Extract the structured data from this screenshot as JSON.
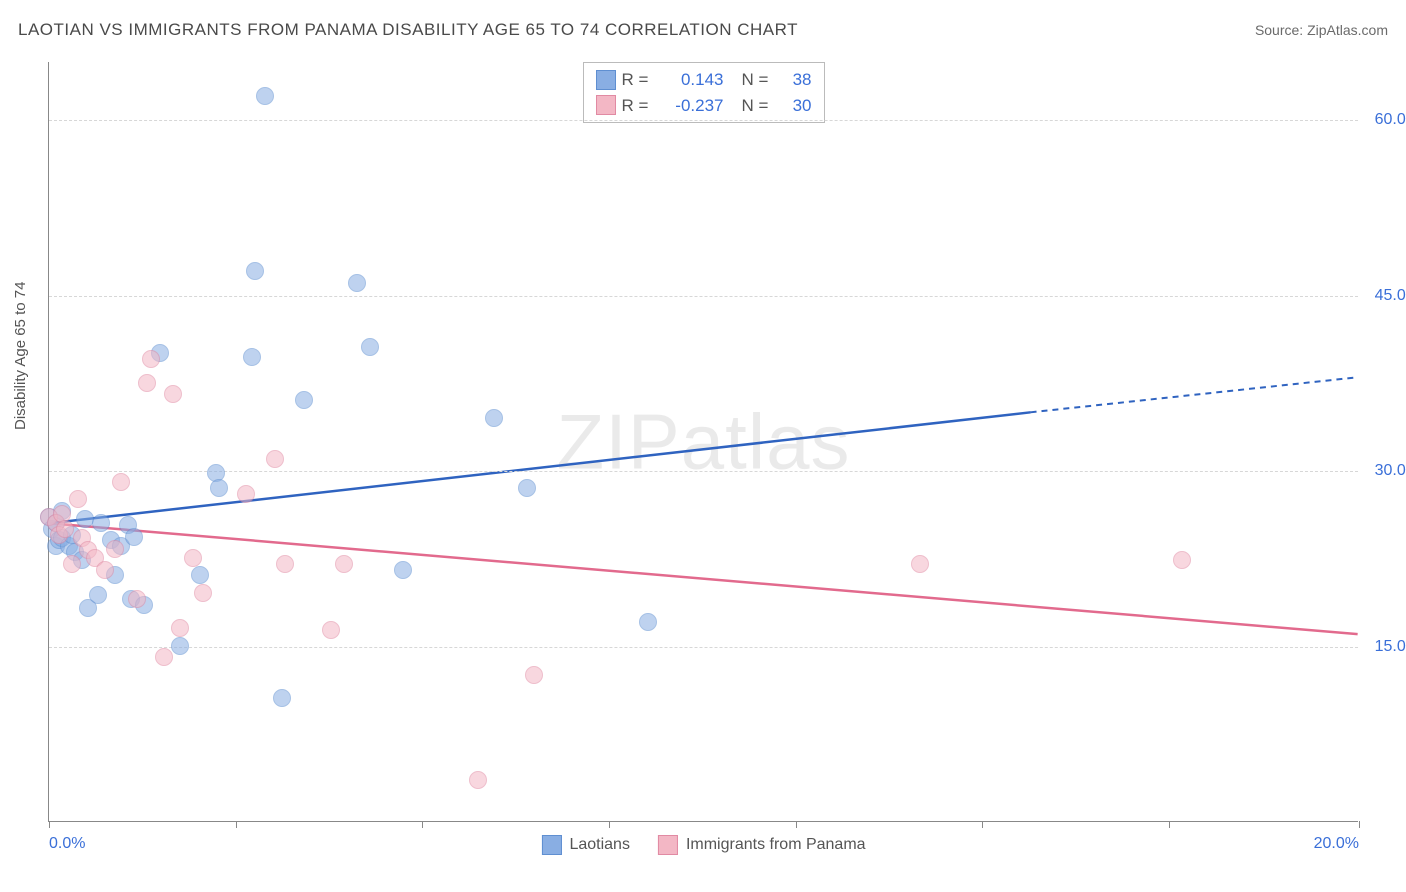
{
  "title": "LAOTIAN VS IMMIGRANTS FROM PANAMA DISABILITY AGE 65 TO 74 CORRELATION CHART",
  "source": "Source: ZipAtlas.com",
  "ylabel": "Disability Age 65 to 74",
  "watermark_bold": "ZIP",
  "watermark_thin": "atlas",
  "chart": {
    "type": "scatter",
    "xlim": [
      0,
      20
    ],
    "ylim": [
      0,
      65
    ],
    "xtick_positions": [
      0,
      2.85,
      5.7,
      8.55,
      11.4,
      14.25,
      17.1,
      20
    ],
    "xtick_labels_shown": {
      "0": "0.0%",
      "20": "20.0%"
    },
    "ytick_positions": [
      15,
      30,
      45,
      60
    ],
    "ytick_labels": [
      "15.0%",
      "30.0%",
      "45.0%",
      "60.0%"
    ],
    "grid_color": "#d7d7d7",
    "axis_color": "#888888",
    "tick_label_color": "#3a6fd8",
    "background_color": "#ffffff",
    "marker_radius": 9,
    "marker_opacity": 0.55,
    "series": [
      {
        "name": "Laotians",
        "fill_color": "#89aee3",
        "stroke_color": "#5f8fd1",
        "line_color": "#2f63c0",
        "trend": {
          "x1": 0,
          "y1": 25.5,
          "x2_solid": 15.0,
          "y2_solid": 35.0,
          "x2": 20,
          "y2": 38.0
        },
        "R": "0.143",
        "N": "38",
        "points": [
          [
            0.0,
            26.0
          ],
          [
            0.05,
            25.0
          ],
          [
            0.1,
            25.5
          ],
          [
            0.1,
            23.5
          ],
          [
            0.15,
            24.0
          ],
          [
            0.2,
            26.5
          ],
          [
            0.2,
            24.2
          ],
          [
            0.3,
            23.5
          ],
          [
            0.35,
            24.5
          ],
          [
            0.4,
            23.0
          ],
          [
            0.5,
            22.3
          ],
          [
            0.55,
            25.8
          ],
          [
            0.6,
            18.2
          ],
          [
            0.75,
            19.3
          ],
          [
            0.8,
            25.5
          ],
          [
            0.95,
            24.0
          ],
          [
            1.0,
            21.0
          ],
          [
            1.1,
            23.5
          ],
          [
            1.2,
            25.3
          ],
          [
            1.25,
            19.0
          ],
          [
            1.3,
            24.3
          ],
          [
            1.45,
            18.5
          ],
          [
            1.7,
            40.0
          ],
          [
            2.0,
            15.0
          ],
          [
            2.3,
            21.0
          ],
          [
            2.55,
            29.8
          ],
          [
            2.6,
            28.5
          ],
          [
            3.1,
            39.7
          ],
          [
            3.15,
            47.0
          ],
          [
            3.3,
            62.0
          ],
          [
            3.55,
            10.5
          ],
          [
            3.9,
            36.0
          ],
          [
            4.7,
            46.0
          ],
          [
            4.9,
            40.5
          ],
          [
            5.4,
            21.5
          ],
          [
            6.8,
            34.5
          ],
          [
            7.3,
            28.5
          ],
          [
            9.15,
            17.0
          ]
        ]
      },
      {
        "name": "Immigrants from Panama",
        "fill_color": "#f3b7c5",
        "stroke_color": "#e18aa3",
        "line_color": "#e26a8d",
        "trend": {
          "x1": 0,
          "y1": 25.5,
          "x2_solid": 20,
          "y2_solid": 16.0,
          "x2": 20,
          "y2": 16.0
        },
        "R": "-0.237",
        "N": "30",
        "points": [
          [
            0.0,
            26.0
          ],
          [
            0.1,
            25.5
          ],
          [
            0.15,
            24.5
          ],
          [
            0.2,
            26.3
          ],
          [
            0.25,
            25.0
          ],
          [
            0.35,
            22.0
          ],
          [
            0.45,
            27.5
          ],
          [
            0.5,
            24.2
          ],
          [
            0.6,
            23.2
          ],
          [
            0.7,
            22.5
          ],
          [
            0.85,
            21.5
          ],
          [
            1.0,
            23.3
          ],
          [
            1.1,
            29.0
          ],
          [
            1.35,
            19.0
          ],
          [
            1.5,
            37.5
          ],
          [
            1.55,
            39.5
          ],
          [
            1.75,
            14.0
          ],
          [
            1.9,
            36.5
          ],
          [
            2.0,
            16.5
          ],
          [
            2.2,
            22.5
          ],
          [
            2.35,
            19.5
          ],
          [
            3.0,
            28.0
          ],
          [
            3.45,
            31.0
          ],
          [
            3.6,
            22.0
          ],
          [
            4.3,
            16.3
          ],
          [
            4.5,
            22.0
          ],
          [
            6.55,
            3.5
          ],
          [
            7.4,
            12.5
          ],
          [
            13.3,
            22.0
          ],
          [
            17.3,
            22.3
          ]
        ]
      }
    ],
    "legend_bottom": [
      "Laotians",
      "Immigrants from Panama"
    ]
  }
}
